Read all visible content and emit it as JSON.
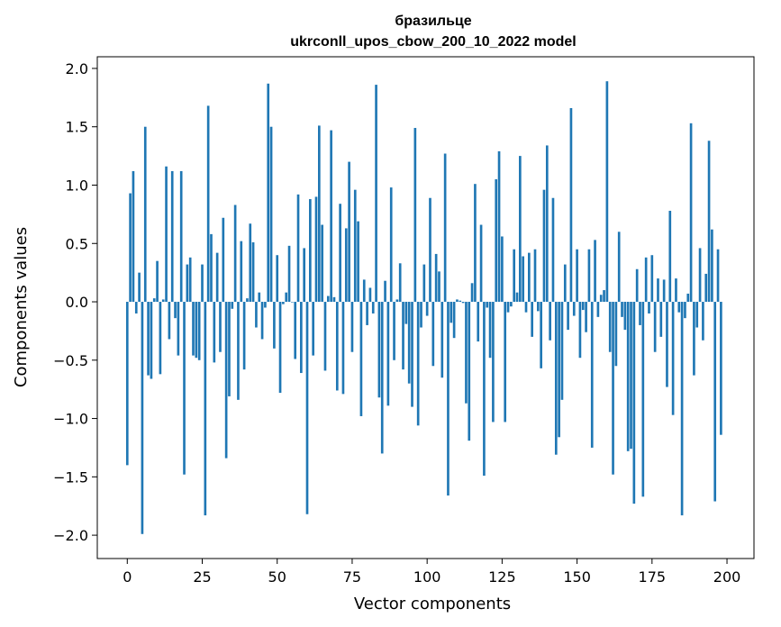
{
  "chart_data": {
    "type": "bar",
    "title": "бразильце",
    "subtitle": "ukrconll_upos_cbow_200_10_2022 model",
    "xlabel": "Vector components",
    "ylabel": "Components values",
    "xlim": [
      -10,
      209
    ],
    "ylim": [
      -2.2,
      2.1
    ],
    "xticks": [
      0,
      25,
      50,
      75,
      100,
      125,
      150,
      175,
      200
    ],
    "yticks": [
      -2.0,
      -1.5,
      -1.0,
      -0.5,
      0.0,
      0.5,
      1.0,
      1.5,
      2.0
    ],
    "ytick_labels": [
      "−2.0",
      "−1.5",
      "−1.0",
      "−0.5",
      "0.0",
      "0.5",
      "1.0",
      "1.5",
      "2.0"
    ],
    "bar_color": "#1f77b4",
    "values": [
      -1.4,
      0.93,
      1.12,
      -0.1,
      0.25,
      -1.99,
      1.5,
      -0.63,
      -0.66,
      0.03,
      0.35,
      -0.62,
      0.02,
      1.16,
      -0.32,
      1.12,
      -0.14,
      -0.46,
      1.12,
      -1.48,
      0.32,
      0.38,
      -0.46,
      -0.48,
      -0.5,
      0.32,
      -1.83,
      1.68,
      0.58,
      -0.52,
      0.42,
      -0.43,
      0.72,
      -1.34,
      -0.81,
      -0.06,
      0.83,
      -0.84,
      0.52,
      -0.58,
      0.03,
      0.67,
      0.51,
      -0.22,
      0.08,
      -0.32,
      -0.05,
      1.87,
      1.5,
      -0.4,
      0.4,
      -0.78,
      -0.02,
      0.08,
      0.48,
      0.0,
      -0.49,
      0.92,
      -0.61,
      0.46,
      -1.82,
      0.88,
      -0.46,
      0.9,
      1.51,
      0.66,
      -0.59,
      0.05,
      1.47,
      0.04,
      -0.76,
      0.84,
      -0.79,
      0.63,
      1.2,
      -0.43,
      0.96,
      0.69,
      -0.98,
      0.19,
      -0.2,
      0.12,
      -0.1,
      1.86,
      -0.82,
      -1.3,
      0.18,
      -0.89,
      0.98,
      -0.5,
      0.02,
      0.33,
      -0.58,
      -0.19,
      -0.7,
      -0.9,
      1.49,
      -1.06,
      -0.22,
      0.32,
      -0.12,
      0.89,
      -0.55,
      0.41,
      0.26,
      -0.65,
      1.27,
      -1.66,
      -0.18,
      -0.31,
      0.02,
      0.01,
      -0.01,
      -0.87,
      -1.19,
      0.16,
      1.01,
      -0.34,
      0.66,
      -1.49,
      -0.05,
      -0.48,
      -1.03,
      1.05,
      1.29,
      0.56,
      -1.03,
      -0.09,
      -0.04,
      0.45,
      0.08,
      1.25,
      0.39,
      -0.09,
      0.42,
      -0.3,
      0.45,
      -0.08,
      -0.57,
      0.96,
      1.34,
      -0.33,
      0.89,
      -1.31,
      -1.16,
      -0.84,
      0.32,
      -0.24,
      1.66,
      -0.12,
      0.45,
      -0.48,
      -0.07,
      -0.26,
      0.45,
      -1.25,
      0.53,
      -0.13,
      0.06,
      0.1,
      1.89,
      -0.43,
      -1.48,
      -0.55,
      0.6,
      -0.13,
      -0.24,
      -1.28,
      -1.26,
      -1.73,
      0.28,
      -0.2,
      -1.67,
      0.38,
      -0.1,
      0.4,
      -0.43,
      0.2,
      -0.3,
      0.19,
      -0.73,
      0.78,
      -0.97,
      0.2,
      -0.09,
      -1.83,
      -0.14,
      0.07,
      1.53,
      -0.63,
      -0.22,
      0.46,
      -0.33,
      0.24,
      1.38,
      0.62,
      -1.71,
      0.45,
      -1.14
    ]
  }
}
